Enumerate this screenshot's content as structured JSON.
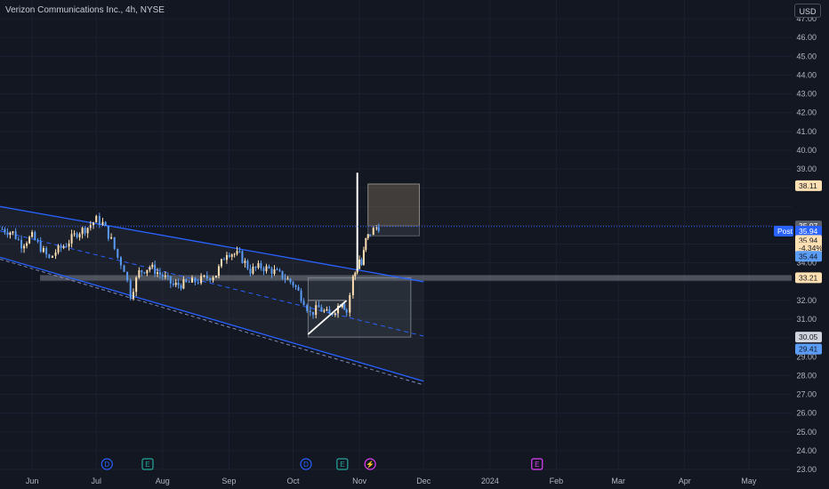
{
  "header": {
    "symbol_title": "Verizon Communications Inc., 4h, NYSE",
    "currency_button": "USD"
  },
  "colors": {
    "background": "#131722",
    "grid": "#1c2030",
    "channel": "#2962ff",
    "up_candle": "#ffe0b2",
    "down_candle": "#5b9cf6",
    "axis_text": "#b2b5be",
    "white_line": "#ffffff"
  },
  "chart_data": {
    "type": "candlestick",
    "title": "Verizon Communications Inc., 4h, NYSE",
    "ylim": [
      23.0,
      48.0
    ],
    "y_ticks": [
      23.0,
      24.0,
      25.0,
      26.0,
      27.0,
      28.0,
      29.0,
      30.0,
      31.0,
      32.0,
      34.0,
      39.0,
      40.0,
      41.0,
      42.0,
      43.0,
      44.0,
      45.0,
      46.0,
      47.0
    ],
    "x_ticks": [
      "Jun",
      "Jul",
      "Aug",
      "Sep",
      "Oct",
      "Nov",
      "Dec",
      "2024",
      "Feb",
      "Mar",
      "Apr",
      "May"
    ],
    "x_tick_dates": [
      "2023-06-01",
      "2023-07-01",
      "2023-08-01",
      "2023-09-01",
      "2023-10-01",
      "2023-11-01",
      "2023-12-01",
      "2024-01-01",
      "2024-02-01",
      "2024-03-01",
      "2024-04-01",
      "2024-05-01"
    ],
    "x_range": [
      "2023-05-17",
      "2024-05-21"
    ],
    "close_path": [
      {
        "date": "2023-05-18",
        "close": 35.8
      },
      {
        "date": "2023-05-23",
        "close": 35.6
      },
      {
        "date": "2023-05-27",
        "close": 35.0
      },
      {
        "date": "2023-06-01",
        "close": 35.4
      },
      {
        "date": "2023-06-05",
        "close": 34.8
      },
      {
        "date": "2023-06-09",
        "close": 34.2
      },
      {
        "date": "2023-06-12",
        "close": 34.6
      },
      {
        "date": "2023-06-17",
        "close": 35.0
      },
      {
        "date": "2023-06-22",
        "close": 35.6
      },
      {
        "date": "2023-06-27",
        "close": 35.9
      },
      {
        "date": "2023-07-01",
        "close": 36.3
      },
      {
        "date": "2023-07-04",
        "close": 36.1
      },
      {
        "date": "2023-07-08",
        "close": 35.2
      },
      {
        "date": "2023-07-11",
        "close": 34.3
      },
      {
        "date": "2023-07-14",
        "close": 33.7
      },
      {
        "date": "2023-07-17",
        "close": 32.3
      },
      {
        "date": "2023-07-21",
        "close": 33.5
      },
      {
        "date": "2023-07-26",
        "close": 33.8
      },
      {
        "date": "2023-08-01",
        "close": 33.3
      },
      {
        "date": "2023-08-06",
        "close": 32.8
      },
      {
        "date": "2023-08-12",
        "close": 32.9
      },
      {
        "date": "2023-08-19",
        "close": 33.1
      },
      {
        "date": "2023-08-26",
        "close": 33.4
      },
      {
        "date": "2023-08-31",
        "close": 34.6
      },
      {
        "date": "2023-09-06",
        "close": 34.4
      },
      {
        "date": "2023-09-11",
        "close": 33.6
      },
      {
        "date": "2023-09-16",
        "close": 33.8
      },
      {
        "date": "2023-09-21",
        "close": 33.6
      },
      {
        "date": "2023-09-26",
        "close": 33.3
      },
      {
        "date": "2023-10-01",
        "close": 32.9
      },
      {
        "date": "2023-10-06",
        "close": 32.0
      },
      {
        "date": "2023-10-09",
        "close": 31.3
      },
      {
        "date": "2023-10-13",
        "close": 31.6
      },
      {
        "date": "2023-10-18",
        "close": 31.2
      },
      {
        "date": "2023-10-22",
        "close": 31.7
      },
      {
        "date": "2023-10-24",
        "close": 32.0
      },
      {
        "date": "2023-10-26",
        "close": 31.4
      },
      {
        "date": "2023-10-29",
        "close": 33.2
      },
      {
        "date": "2023-10-31",
        "close": 33.8
      },
      {
        "date": "2023-11-01",
        "close": 34.2
      },
      {
        "date": "2023-11-02",
        "close": 33.9
      },
      {
        "date": "2023-11-04",
        "close": 35.2
      },
      {
        "date": "2023-11-06",
        "close": 35.6
      },
      {
        "date": "2023-11-09",
        "close": 35.9
      },
      {
        "date": "2023-11-10",
        "close": 35.94
      }
    ],
    "spike": {
      "date": "2023-10-31",
      "high": 38.8,
      "low": 33.6
    },
    "channel": {
      "upper": [
        {
          "date": "2023-05-17",
          "price": 37.0
        },
        {
          "date": "2023-12-01",
          "price": 33.0
        }
      ],
      "lower": [
        {
          "date": "2023-05-17",
          "price": 34.3
        },
        {
          "date": "2023-12-01",
          "price": 27.7
        }
      ],
      "lower_inner": [
        {
          "date": "2023-05-17",
          "price": 34.2
        },
        {
          "date": "2023-12-01",
          "price": 27.5
        }
      ],
      "mid": [
        {
          "date": "2023-05-17",
          "price": 35.7
        },
        {
          "date": "2023-12-01",
          "price": 30.1
        }
      ]
    },
    "support_band": [
      33.35,
      33.05
    ],
    "trendline": [
      {
        "date": "2023-10-08",
        "price": 30.2
      },
      {
        "date": "2023-10-26",
        "price": 32.0
      }
    ],
    "triangle_top": [
      {
        "date": "2023-10-08",
        "price": 32.0
      },
      {
        "date": "2023-10-26",
        "price": 32.0
      }
    ],
    "zones": [
      {
        "name": "target",
        "from": "2023-11-05",
        "to": "2023-11-29",
        "top": 38.2,
        "bottom": 35.97
      },
      {
        "name": "stop",
        "from": "2023-11-05",
        "to": "2023-11-29",
        "top": 35.97,
        "bottom": 35.44
      },
      {
        "name": "demand",
        "from": "2023-10-08",
        "to": "2023-11-25",
        "top": 33.21,
        "bottom": 30.05
      }
    ],
    "price_labels": [
      {
        "text": "38.11",
        "price": 38.11,
        "bg": "#ffe0b2",
        "fg": "#131722"
      },
      {
        "text": "35.97",
        "price": 35.97,
        "bg": "#5d606b",
        "fg": "#ffffff"
      },
      {
        "text": "35.94",
        "price": 35.69,
        "bg": "#2962ff",
        "fg": "#ffffff"
      },
      {
        "text": "35.94",
        "price": 35.2,
        "bg": "#ffe0b2",
        "fg": "#131722"
      },
      {
        "text": "-4.34%",
        "price": 34.8,
        "bg": "#ffe0b2",
        "fg": "#131722"
      },
      {
        "text": "35.44",
        "price": 34.35,
        "bg": "#5b9cf6",
        "fg": "#131722"
      },
      {
        "text": "33.21",
        "price": 33.21,
        "bg": "#ffe0b2",
        "fg": "#131722"
      },
      {
        "text": "30.05",
        "price": 30.05,
        "bg": "#d1d4dc",
        "fg": "#131722"
      },
      {
        "text": "29.41",
        "price": 29.41,
        "bg": "#5b9cf6",
        "fg": "#131722"
      }
    ],
    "post_badge": "Post",
    "events": [
      {
        "type": "D",
        "date": "2023-07-06"
      },
      {
        "type": "E",
        "date": "2023-07-25"
      },
      {
        "type": "D",
        "date": "2023-10-07"
      },
      {
        "type": "E",
        "date": "2023-10-24"
      },
      {
        "type": "⚡",
        "date": "2023-11-06"
      },
      {
        "type": "E",
        "date": "2024-01-23"
      }
    ],
    "grid": true
  }
}
